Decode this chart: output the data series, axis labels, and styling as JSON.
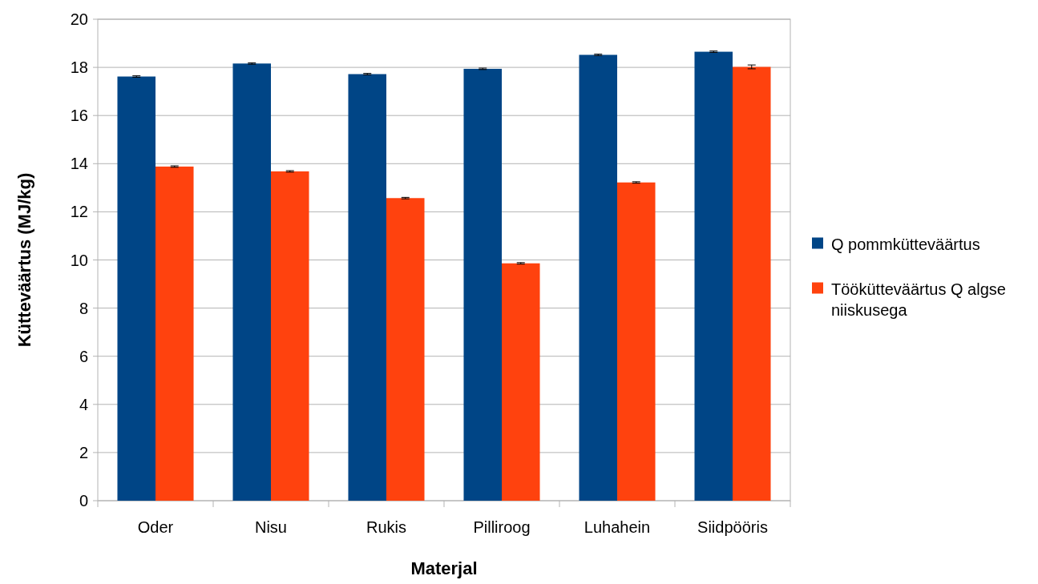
{
  "chart_data": {
    "type": "bar",
    "xlabel": "Materjal",
    "ylabel": "Kütteväärtus (MJ/kg)",
    "categories": [
      "Oder",
      "Nisu",
      "Rukis",
      "Pilliroog",
      "Luhahein",
      "Siidpööris"
    ],
    "series": [
      {
        "name": "Q pommkütteväärtus",
        "color": "#004586",
        "values": [
          17.62,
          18.16,
          17.72,
          17.94,
          18.52,
          18.65
        ],
        "errors": [
          0.03,
          0.03,
          0.03,
          0.03,
          0.03,
          0.03
        ]
      },
      {
        "name": "Töökütteväärtus Q algse niiskusega",
        "color": "#ff420e",
        "values": [
          13.88,
          13.68,
          12.57,
          9.86,
          13.22,
          18.02
        ],
        "errors": [
          0.03,
          0.03,
          0.03,
          0.03,
          0.03,
          0.08
        ]
      }
    ],
    "ylim": [
      0,
      20
    ],
    "yticks": [
      0,
      2,
      4,
      6,
      8,
      10,
      12,
      14,
      16,
      18,
      20
    ],
    "grid": "y",
    "legend": "right"
  }
}
